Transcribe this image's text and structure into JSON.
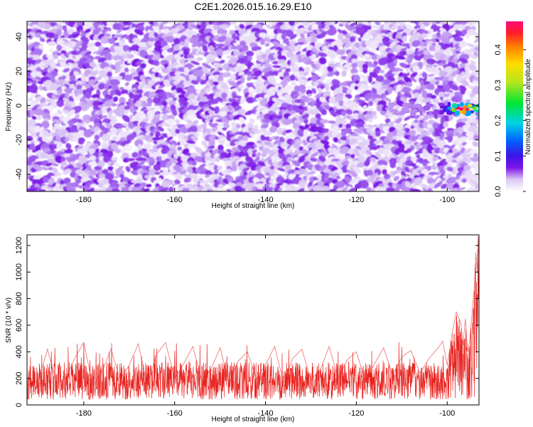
{
  "title": "C2E1.2026.015.16.29.E10",
  "colors": {
    "snr_line": "#e8231f",
    "frame": "#000000",
    "background": "#ffffff",
    "colormap": [
      "#ffffff",
      "#dcc8f5",
      "#a060f0",
      "#7d16e6",
      "#3c14e6",
      "#0064ff",
      "#00d2e6",
      "#00e632",
      "#b4e61e",
      "#ffdc00",
      "#ff8200",
      "#ff1e28",
      "#ff0a78"
    ]
  },
  "chart_data": [
    {
      "type": "heatmap",
      "xlabel": "Height of straight line (km)",
      "ylabel": "Frequency (Hz)",
      "xlim": [
        -192.5,
        -93
      ],
      "ylim": [
        -50,
        49
      ],
      "xticks": [
        -180,
        -160,
        -140,
        -120,
        -100
      ],
      "yticks": [
        -40,
        -20,
        0,
        20,
        40
      ],
      "colorbar": {
        "label": "Normalized spectral amplitude",
        "range": [
          0,
          0.48
        ],
        "ticks": [
          "0.0",
          "0.1",
          "0.2",
          "0.3",
          "0.4"
        ],
        "tick_values": [
          0.0,
          0.1,
          0.2,
          0.3,
          0.4
        ],
        "colormap": "rainbow"
      },
      "background_amplitude_range": [
        0.0,
        0.12
      ],
      "features": [
        {
          "description": "strong band near 0 Hz",
          "x_range": [
            -115,
            -93
          ],
          "y_center": -2,
          "y_width": 6,
          "peak_amplitude": 0.48,
          "peak_at": [
            -97,
            -2
          ]
        }
      ],
      "grid": false,
      "legend": "none"
    },
    {
      "type": "line",
      "xlabel": "Height of straight line (km)",
      "ylabel": "SNR (10 * v/v)",
      "xlim": [
        -192.5,
        -93
      ],
      "ylim": [
        0,
        1280
      ],
      "xticks": [
        -180,
        -160,
        -140,
        -120,
        -100
      ],
      "yticks": [
        0,
        200,
        400,
        600,
        800,
        1000,
        1200
      ],
      "series": [
        {
          "color": "#e8231f",
          "baseline_range": [
            40,
            320
          ],
          "occasional_peaks_to": 480,
          "rise_start": -100,
          "points": [
            [
              -192.5,
              150
            ],
            [
              -190,
              180
            ],
            [
              -188,
              420
            ],
            [
              -186,
              160
            ],
            [
              -184,
              200
            ],
            [
              -182,
              350
            ],
            [
              -180,
              470
            ],
            [
              -178,
              140
            ],
            [
              -176,
              250
            ],
            [
              -174,
              420
            ],
            [
              -172,
              190
            ],
            [
              -170,
              300
            ],
            [
              -168,
              460
            ],
            [
              -166,
              150
            ],
            [
              -164,
              380
            ],
            [
              -162,
              470
            ],
            [
              -160,
              200
            ],
            [
              -158,
              310
            ],
            [
              -156,
              440
            ],
            [
              -154,
              180
            ],
            [
              -152,
              270
            ],
            [
              -150,
              430
            ],
            [
              -148,
              160
            ],
            [
              -146,
              330
            ],
            [
              -144,
              400
            ],
            [
              -142,
              200
            ],
            [
              -140,
              300
            ],
            [
              -138,
              440
            ],
            [
              -136,
              170
            ],
            [
              -134,
              350
            ],
            [
              -132,
              420
            ],
            [
              -130,
              190
            ],
            [
              -128,
              260
            ],
            [
              -126,
              440
            ],
            [
              -124,
              200
            ],
            [
              -122,
              340
            ],
            [
              -120,
              400
            ],
            [
              -118,
              180
            ],
            [
              -116,
              310
            ],
            [
              -114,
              430
            ],
            [
              -112,
              220
            ],
            [
              -110,
              360
            ],
            [
              -108,
              410
            ],
            [
              -106,
              240
            ],
            [
              -104,
              350
            ],
            [
              -102,
              430
            ],
            [
              -101,
              480
            ],
            [
              -100,
              300
            ],
            [
              -99,
              520
            ],
            [
              -98,
              700
            ],
            [
              -97,
              620
            ],
            [
              -96.5,
              450
            ],
            [
              -96,
              650
            ],
            [
              -95.5,
              400
            ],
            [
              -95,
              500
            ],
            [
              -94.5,
              700
            ],
            [
              -94,
              900
            ],
            [
              -93.7,
              1150
            ],
            [
              -93.4,
              1000
            ],
            [
              -93.2,
              1270
            ],
            [
              -93,
              1100
            ]
          ]
        }
      ],
      "grid": false,
      "legend": "none"
    }
  ]
}
